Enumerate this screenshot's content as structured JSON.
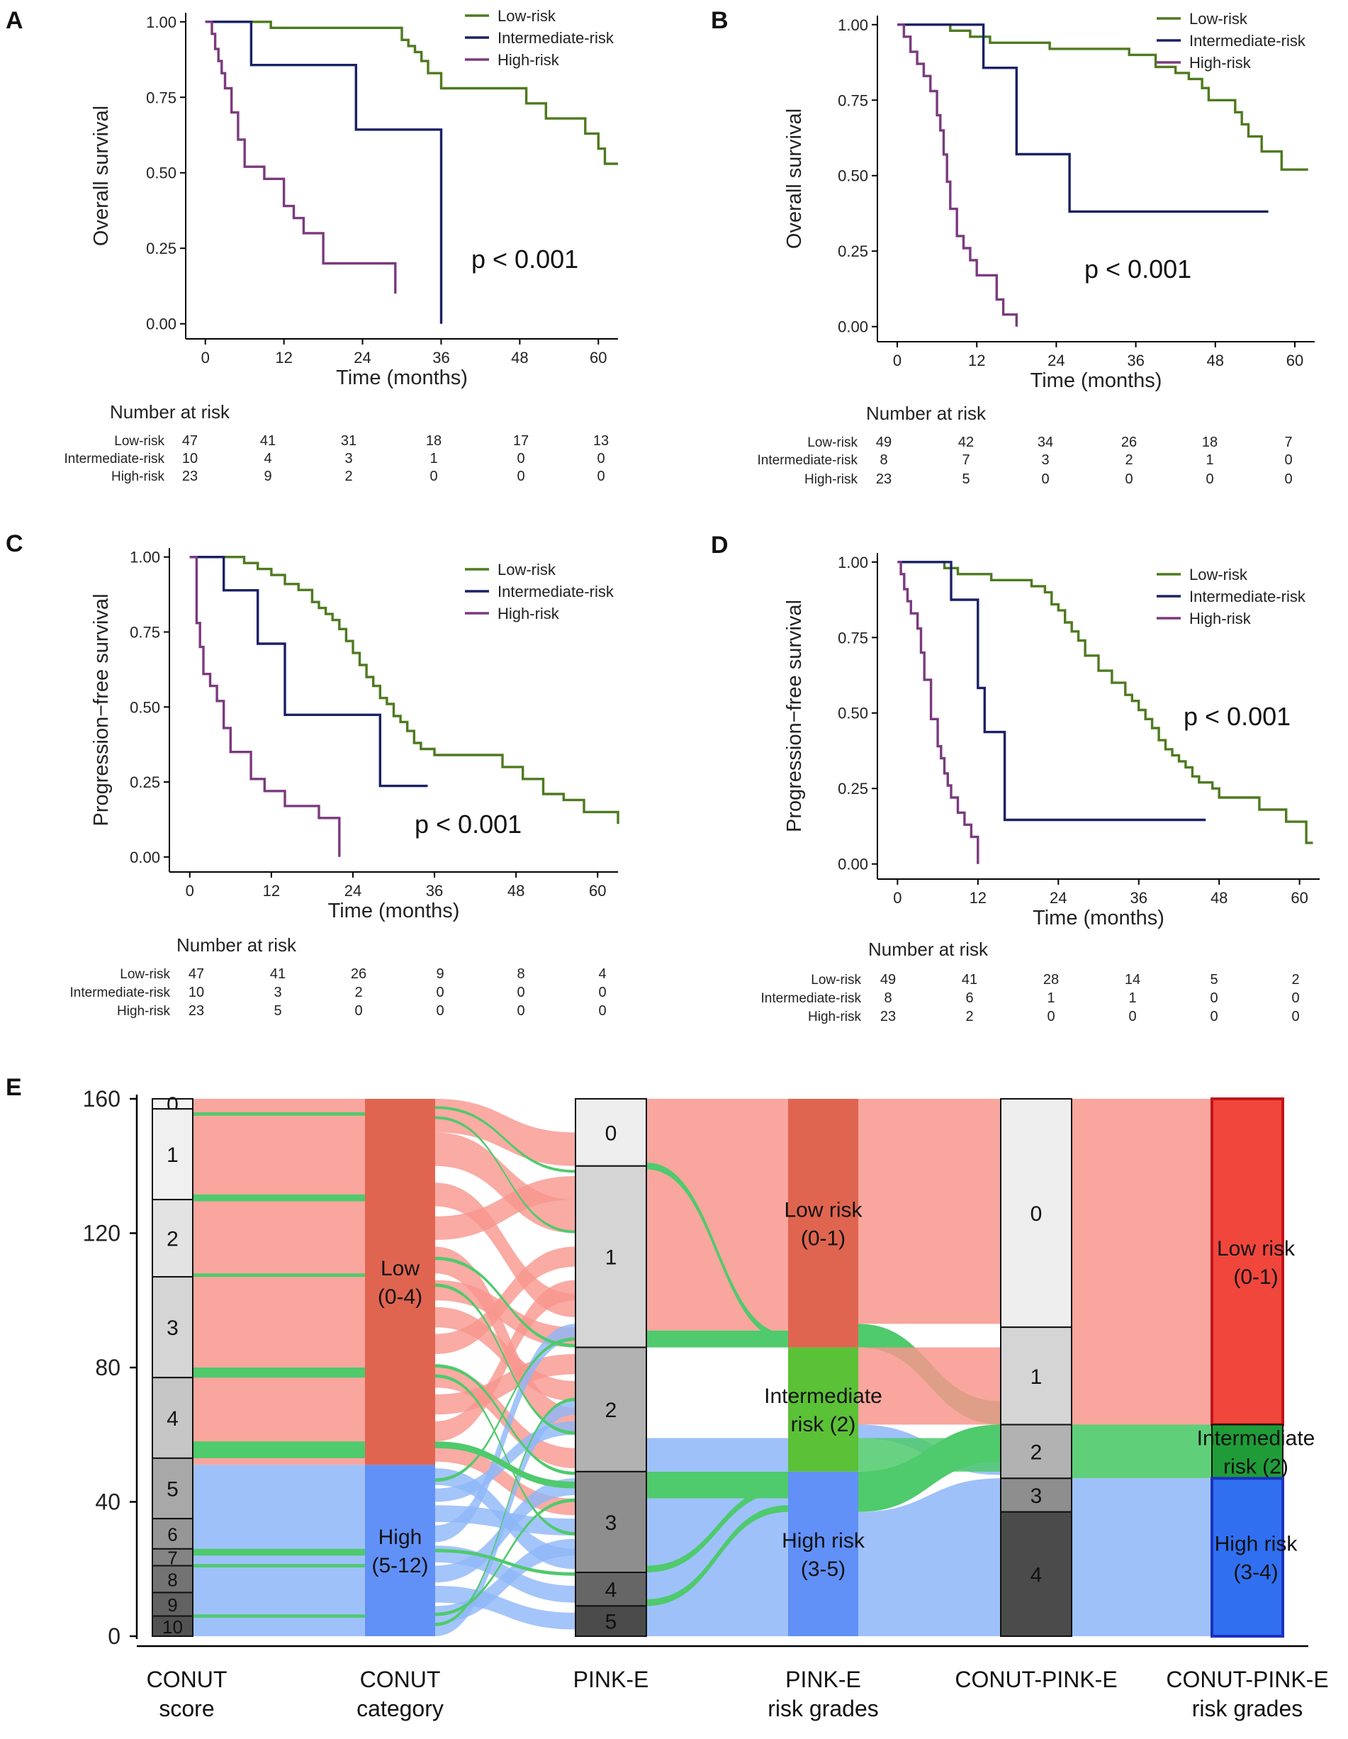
{
  "chart_data": [
    {
      "type": "line",
      "panel": "A",
      "ylabel": "Overall survival",
      "xlabel": "Time (months)",
      "xticks": [
        0,
        12,
        24,
        36,
        48,
        60
      ],
      "yticks": [
        "0.00",
        "0.25",
        "0.50",
        "0.75",
        "1.00"
      ],
      "xlim": [
        -3,
        63
      ],
      "ylim": [
        -0.05,
        1.03
      ],
      "p_value": "p < 0.001",
      "series": [
        {
          "name": "Low-risk",
          "color": "#4e7a1f",
          "x": [
            0,
            10,
            29,
            30,
            31,
            32,
            33,
            34,
            36,
            48,
            49,
            52,
            58,
            60,
            61,
            63
          ],
          "y": [
            1,
            0.98,
            0.98,
            0.94,
            0.92,
            0.9,
            0.87,
            0.83,
            0.78,
            0.78,
            0.73,
            0.68,
            0.63,
            0.58,
            0.53,
            0.53
          ]
        },
        {
          "name": "Intermediate-risk",
          "color": "#1a2166",
          "x": [
            0,
            7,
            23,
            36,
            36
          ],
          "y": [
            1,
            0.857,
            0.643,
            0.643,
            0.0
          ]
        },
        {
          "name": "High-risk",
          "color": "#7b3a7e",
          "x": [
            0,
            1,
            1.5,
            2,
            2.5,
            3,
            4,
            5,
            6,
            9,
            12,
            13.5,
            15,
            18,
            29
          ],
          "y": [
            1,
            0.96,
            0.91,
            0.87,
            0.83,
            0.78,
            0.7,
            0.61,
            0.52,
            0.48,
            0.39,
            0.35,
            0.3,
            0.2,
            0.1
          ]
        }
      ],
      "risk_table": {
        "title": "Number at risk",
        "rows": [
          {
            "label": "Low-risk",
            "values": [
              "47",
              "41",
              "31",
              "18",
              "17",
              "13"
            ]
          },
          {
            "label": "Intermediate-risk",
            "values": [
              "10",
              "4",
              "3",
              "1",
              "0",
              "0"
            ]
          },
          {
            "label": "High-risk",
            "values": [
              "23",
              "9",
              "2",
              "0",
              "0",
              "0"
            ]
          }
        ]
      }
    },
    {
      "type": "line",
      "panel": "B",
      "ylabel": "Overall survival",
      "xlabel": "Time (months)",
      "xticks": [
        0,
        12,
        24,
        36,
        48,
        60
      ],
      "yticks": [
        "0.00",
        "0.25",
        "0.50",
        "0.75",
        "1.00"
      ],
      "xlim": [
        -3,
        63
      ],
      "ylim": [
        -0.05,
        1.03
      ],
      "p_value": "p < 0.001",
      "series": [
        {
          "name": "Low-risk",
          "color": "#4e7a1f",
          "x": [
            0,
            8,
            11,
            14,
            23,
            35,
            39,
            42,
            44,
            46,
            47,
            51,
            52,
            53,
            55,
            58,
            62
          ],
          "y": [
            1,
            0.98,
            0.96,
            0.94,
            0.92,
            0.9,
            0.86,
            0.84,
            0.82,
            0.79,
            0.75,
            0.71,
            0.67,
            0.63,
            0.58,
            0.52,
            0.52
          ]
        },
        {
          "name": "Intermediate-risk",
          "color": "#1a2166",
          "x": [
            0,
            13,
            18,
            26,
            56
          ],
          "y": [
            1,
            0.857,
            0.571,
            0.381,
            0.381
          ]
        },
        {
          "name": "High-risk",
          "color": "#7b3a7e",
          "x": [
            0,
            1,
            2,
            3,
            4,
            5,
            6,
            6.5,
            7,
            7.5,
            8,
            9,
            10,
            11,
            12,
            15,
            16,
            18
          ],
          "y": [
            1,
            0.96,
            0.91,
            0.87,
            0.83,
            0.78,
            0.7,
            0.65,
            0.57,
            0.48,
            0.39,
            0.3,
            0.26,
            0.22,
            0.17,
            0.09,
            0.04,
            0.0
          ]
        }
      ],
      "risk_table": {
        "title": "Number at risk",
        "rows": [
          {
            "label": "Low-risk",
            "values": [
              "49",
              "42",
              "34",
              "26",
              "18",
              "7"
            ]
          },
          {
            "label": "Intermediate-risk",
            "values": [
              "8",
              "7",
              "3",
              "2",
              "1",
              "0"
            ]
          },
          {
            "label": "High-risk",
            "values": [
              "23",
              "5",
              "0",
              "0",
              "0",
              "0"
            ]
          }
        ]
      }
    },
    {
      "type": "line",
      "panel": "C",
      "ylabel": "Progression−free survival",
      "xlabel": "Time (months)",
      "xticks": [
        0,
        12,
        24,
        36,
        48,
        60
      ],
      "yticks": [
        "0.00",
        "0.25",
        "0.50",
        "0.75",
        "1.00"
      ],
      "xlim": [
        -3,
        63
      ],
      "ylim": [
        -0.05,
        1.03
      ],
      "p_value": "p < 0.001",
      "series": [
        {
          "name": "Low-risk",
          "color": "#4e7a1f",
          "x": [
            0,
            5,
            8,
            10,
            12,
            14,
            16,
            18,
            19,
            20,
            21,
            22,
            23,
            24,
            25,
            26,
            27,
            28,
            29,
            30,
            31,
            32,
            33,
            34,
            36,
            46,
            49,
            52,
            55,
            58,
            62,
            63
          ],
          "y": [
            1,
            1,
            0.98,
            0.96,
            0.94,
            0.91,
            0.89,
            0.85,
            0.83,
            0.81,
            0.79,
            0.76,
            0.72,
            0.68,
            0.64,
            0.6,
            0.57,
            0.53,
            0.51,
            0.47,
            0.45,
            0.42,
            0.38,
            0.36,
            0.34,
            0.3,
            0.26,
            0.21,
            0.19,
            0.15,
            0.15,
            0.11
          ]
        },
        {
          "name": "Intermediate-risk",
          "color": "#1a2166",
          "x": [
            0,
            5,
            10,
            14,
            28,
            35
          ],
          "y": [
            1,
            0.889,
            0.711,
            0.474,
            0.237,
            0.237
          ]
        },
        {
          "name": "High-risk",
          "color": "#7b3a7e",
          "x": [
            0,
            1,
            1.5,
            2,
            3,
            4,
            5,
            6,
            9,
            11,
            14,
            19,
            22,
            22
          ],
          "y": [
            1,
            0.78,
            0.7,
            0.61,
            0.57,
            0.52,
            0.43,
            0.35,
            0.26,
            0.22,
            0.17,
            0.13,
            0.09,
            0.0
          ]
        }
      ],
      "risk_table": {
        "title": "Number at risk",
        "rows": [
          {
            "label": "Low-risk",
            "values": [
              "47",
              "41",
              "26",
              "9",
              "8",
              "4"
            ]
          },
          {
            "label": "Intermediate-risk",
            "values": [
              "10",
              "3",
              "2",
              "0",
              "0",
              "0"
            ]
          },
          {
            "label": "High-risk",
            "values": [
              "23",
              "5",
              "0",
              "0",
              "0",
              "0"
            ]
          }
        ]
      }
    },
    {
      "type": "line",
      "panel": "D",
      "ylabel": "Progression−free survival",
      "xlabel": "Time (months)",
      "xticks": [
        0,
        12,
        24,
        36,
        48,
        60
      ],
      "yticks": [
        "0.00",
        "0.25",
        "0.50",
        "0.75",
        "1.00"
      ],
      "xlim": [
        -3,
        63
      ],
      "ylim": [
        -0.05,
        1.03
      ],
      "p_value": "p < 0.001",
      "series": [
        {
          "name": "Low-risk",
          "color": "#4e7a1f",
          "x": [
            0,
            7,
            9,
            14,
            20,
            22,
            23,
            24,
            25,
            26,
            27,
            28,
            30,
            32,
            34,
            35,
            36,
            37,
            38,
            39,
            40,
            41,
            42,
            43,
            44,
            45,
            47,
            48,
            50,
            54,
            58,
            61,
            62
          ],
          "y": [
            1,
            0.98,
            0.96,
            0.94,
            0.92,
            0.9,
            0.86,
            0.84,
            0.8,
            0.77,
            0.74,
            0.69,
            0.64,
            0.6,
            0.56,
            0.54,
            0.51,
            0.48,
            0.45,
            0.41,
            0.38,
            0.36,
            0.34,
            0.32,
            0.29,
            0.27,
            0.25,
            0.22,
            0.22,
            0.18,
            0.14,
            0.07,
            0.07
          ]
        },
        {
          "name": "Intermediate-risk",
          "color": "#1a2166",
          "x": [
            0,
            8,
            12,
            13,
            16,
            46
          ],
          "y": [
            1,
            0.875,
            0.583,
            0.437,
            0.146,
            0.146
          ]
        },
        {
          "name": "High-risk",
          "color": "#7b3a7e",
          "x": [
            0,
            0.5,
            1,
            1.5,
            2,
            3,
            3.5,
            4,
            5,
            6,
            6.5,
            7,
            7.5,
            8,
            9,
            10,
            11,
            12,
            12
          ],
          "y": [
            1,
            0.96,
            0.91,
            0.87,
            0.83,
            0.78,
            0.7,
            0.61,
            0.48,
            0.39,
            0.35,
            0.3,
            0.26,
            0.22,
            0.17,
            0.13,
            0.09,
            0.04,
            0.0
          ]
        }
      ],
      "risk_table": {
        "title": "Number at risk",
        "rows": [
          {
            "label": "Low-risk",
            "values": [
              "49",
              "41",
              "28",
              "14",
              "5",
              "2"
            ]
          },
          {
            "label": "Intermediate-risk",
            "values": [
              "8",
              "6",
              "1",
              "1",
              "0",
              "0"
            ]
          },
          {
            "label": "High-risk",
            "values": [
              "23",
              "2",
              "0",
              "0",
              "0",
              "0"
            ]
          }
        ]
      }
    },
    {
      "type": "sankey",
      "panel": "E",
      "yticks": [
        "0",
        "40",
        "80",
        "120",
        "160"
      ],
      "ylim": [
        0,
        160
      ],
      "colors": {
        "low": "#f7968d",
        "intermediate": "#4fca6c",
        "high": "#8db6f9",
        "conut_low": "#e06550",
        "conut_high": "#6191f7",
        "pink_low": "#e06550",
        "pink_mid": "#5bc136",
        "pink_high": "#6191f7",
        "final_low": "#f0463c",
        "final_mid": "#1f9c37",
        "final_high": "#3070f0",
        "final_border_low": "#c0141a",
        "final_border_high": "#1c30c0"
      },
      "columns": [
        {
          "label": [
            "CONUT",
            "score"
          ],
          "nodes": [
            {
              "text": "0",
              "lo": 157,
              "hi": 160,
              "fill": "#f4f4f4"
            },
            {
              "text": "1",
              "lo": 130,
              "hi": 157,
              "fill": "#f0f0f0"
            },
            {
              "text": "2",
              "lo": 107,
              "hi": 130,
              "fill": "#e3e3e3"
            },
            {
              "text": "3",
              "lo": 77,
              "hi": 107,
              "fill": "#d5d5d5"
            },
            {
              "text": "4",
              "lo": 53,
              "hi": 77,
              "fill": "#c6c6c6"
            },
            {
              "text": "5",
              "lo": 35,
              "hi": 53,
              "fill": "#a8a8a8"
            },
            {
              "text": "6",
              "lo": 26,
              "hi": 35,
              "fill": "#969696"
            },
            {
              "text": "7",
              "lo": 21,
              "hi": 26,
              "fill": "#848484"
            },
            {
              "text": "8",
              "lo": 13,
              "hi": 21,
              "fill": "#737373"
            },
            {
              "text": "9",
              "lo": 6,
              "hi": 13,
              "fill": "#626262"
            },
            {
              "text": "10",
              "lo": 0,
              "hi": 6,
              "fill": "#525252"
            }
          ]
        },
        {
          "label": [
            "CONUT",
            "category"
          ],
          "nodes": [
            {
              "text": "Low\n(0-4)",
              "lo": 51,
              "hi": 160,
              "fill": "#e06550"
            },
            {
              "text": "High\n(5-12)",
              "lo": 0,
              "hi": 51,
              "fill": "#6191f7"
            }
          ]
        },
        {
          "label": [
            "PINK-E"
          ],
          "nodes": [
            {
              "text": "0",
              "lo": 140,
              "hi": 160,
              "fill": "#eeeeee"
            },
            {
              "text": "1",
              "lo": 86,
              "hi": 140,
              "fill": "#d5d5d5"
            },
            {
              "text": "2",
              "lo": 49,
              "hi": 86,
              "fill": "#b2b2b2"
            },
            {
              "text": "3",
              "lo": 19,
              "hi": 49,
              "fill": "#8e8e8e"
            },
            {
              "text": "4",
              "lo": 9,
              "hi": 19,
              "fill": "#666666"
            },
            {
              "text": "5",
              "lo": 0,
              "hi": 9,
              "fill": "#4b4b4b"
            }
          ]
        },
        {
          "label": [
            "PINK-E",
            "risk grades"
          ],
          "nodes": [
            {
              "text": "Low risk\n(0-1)",
              "lo": 86,
              "hi": 160,
              "fill": "#e06550"
            },
            {
              "text": "Intermediate\nrisk (2)",
              "lo": 49,
              "hi": 86,
              "fill": "#5bc136"
            },
            {
              "text": "High risk\n(3-5)",
              "lo": 0,
              "hi": 49,
              "fill": "#6191f7"
            }
          ]
        },
        {
          "label": [
            "CONUT-PINK-E"
          ],
          "nodes": [
            {
              "text": "0",
              "lo": 92,
              "hi": 160,
              "fill": "#eeeeee"
            },
            {
              "text": "1",
              "lo": 63,
              "hi": 92,
              "fill": "#d5d5d5"
            },
            {
              "text": "2",
              "lo": 47,
              "hi": 63,
              "fill": "#b2b2b2"
            },
            {
              "text": "3",
              "lo": 37,
              "hi": 47,
              "fill": "#8e8e8e"
            },
            {
              "text": "4",
              "lo": 0,
              "hi": 37,
              "fill": "#4b4b4b"
            }
          ]
        },
        {
          "label": [
            "CONUT-PINK-E",
            "risk grades"
          ],
          "nodes": [
            {
              "text": "Low risk\n(0-1)",
              "lo": 63,
              "hi": 160,
              "fill": "#f0463c"
            },
            {
              "text": "Intermediate\nrisk (2)",
              "lo": 47,
              "hi": 63,
              "fill": "#1f9c37"
            },
            {
              "text": "High risk\n(3-4)",
              "lo": 0,
              "hi": 47,
              "fill": "#3070f0"
            }
          ]
        }
      ]
    }
  ]
}
